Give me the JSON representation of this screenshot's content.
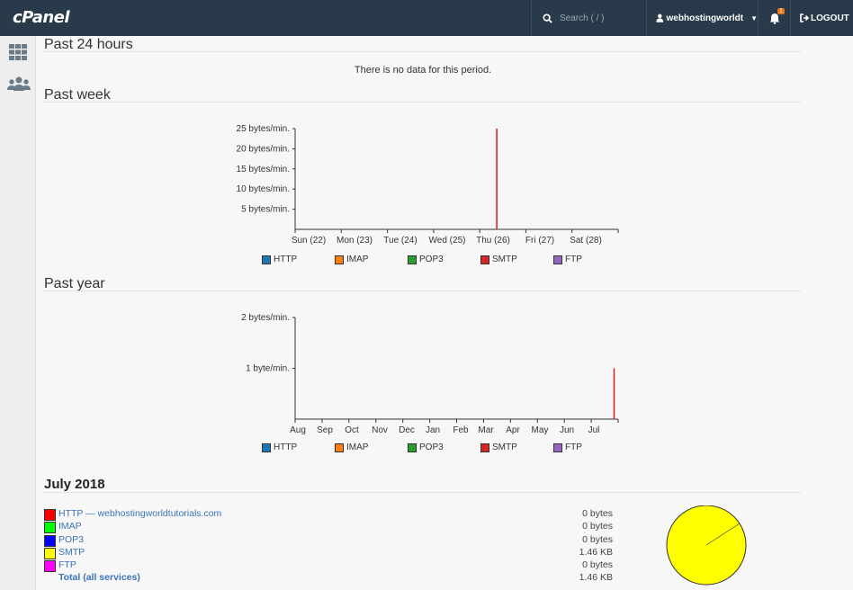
{
  "header": {
    "logo_text": "cPanel",
    "search_placeholder": "Search ( / )",
    "username": "webhostingworldt",
    "notification_count": "1",
    "logout_label": "LOGOUT"
  },
  "sidebar": {
    "items": [
      {
        "icon": "grid-icon"
      },
      {
        "icon": "users-icon"
      }
    ]
  },
  "sections": {
    "past24": {
      "title": "Past 24 hours",
      "empty_message": "There is no data for this period."
    },
    "week": {
      "title": "Past week"
    },
    "year": {
      "title": "Past year"
    }
  },
  "legend": [
    {
      "label": "HTTP",
      "color": "#1f77b4"
    },
    {
      "label": "IMAP",
      "color": "#ff7f0e"
    },
    {
      "label": "POP3",
      "color": "#2ca02c"
    },
    {
      "label": "SMTP",
      "color": "#d62728"
    },
    {
      "label": "FTP",
      "color": "#9467bd"
    }
  ],
  "chart_data": [
    {
      "type": "bar",
      "categories": [
        "Sun (22)",
        "Mon (23)",
        "Tue (24)",
        "Wed (25)",
        "Thu (26)",
        "Fri (27)",
        "Sat (28)"
      ],
      "yticks": [
        "5 bytes/min.",
        "10 bytes/min.",
        "15 bytes/min.",
        "20 bytes/min.",
        "25 bytes/min."
      ],
      "ytick_values": [
        5,
        10,
        15,
        20,
        25
      ],
      "ylim": [
        0,
        25
      ],
      "x_range": [
        0,
        7
      ],
      "series": [
        {
          "name": "SMTP",
          "color": "#d62728",
          "points": [
            {
              "x": 4.37,
              "y": 25
            }
          ]
        }
      ]
    },
    {
      "type": "bar",
      "categories": [
        "Aug",
        "Sep",
        "Oct",
        "Nov",
        "Dec",
        "Jan",
        "Feb",
        "Mar",
        "Apr",
        "May",
        "Jun",
        "Jul"
      ],
      "yticks": [
        "1 byte/min.",
        "2 bytes/min."
      ],
      "ytick_values": [
        1,
        2
      ],
      "ylim": [
        0,
        2
      ],
      "x_range": [
        0,
        12
      ],
      "series": [
        {
          "name": "SMTP",
          "color": "#d62728",
          "points": [
            {
              "x": 11.85,
              "y": 1
            }
          ]
        }
      ]
    }
  ],
  "month": {
    "title": "July 2018",
    "rows": [
      {
        "label": "HTTP — webhostingworldtutorials.com",
        "value": "0 bytes",
        "color": "#ff0000"
      },
      {
        "label": "IMAP",
        "value": "0 bytes",
        "color": "#00ff00"
      },
      {
        "label": "POP3",
        "value": "0 bytes",
        "color": "#0000ff"
      },
      {
        "label": "SMTP",
        "value": "1.46 KB",
        "color": "#ffff00"
      },
      {
        "label": "FTP",
        "value": "0 bytes",
        "color": "#ff00ff"
      }
    ],
    "total_label": "Total (all services)",
    "total_value": "1.46 KB",
    "pie_color": "#ffff00"
  }
}
